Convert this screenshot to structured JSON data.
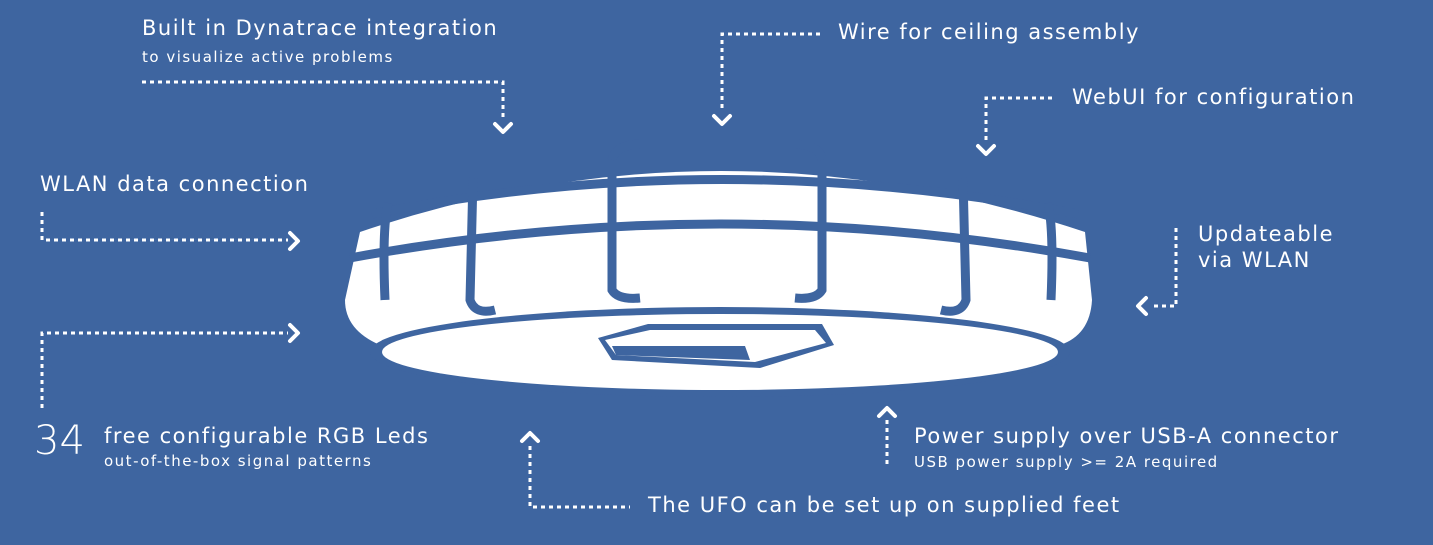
{
  "colors": {
    "background": "#3e65a0",
    "foreground": "#ffffff"
  },
  "labels": {
    "dynatrace_title": "Built in Dynatrace integration",
    "dynatrace_sub": "to visualize active problems",
    "wire": "Wire for ceiling assembly",
    "webui": "WebUI for configuration",
    "wlan": "WLAN data connection",
    "updateable_line1": "Updateable",
    "updateable_line2": "via WLAN",
    "leds_count": "34",
    "leds_title": "free configurable RGB Leds",
    "leds_sub": "out-of-the-box signal patterns",
    "power_title": "Power supply over USB-A connector",
    "power_sub": "USB power supply >= 2A required",
    "feet": "The UFO can be set up on supplied feet"
  },
  "icons": [
    "ufo-device-illustration",
    "arrow-down-icon",
    "arrow-right-icon",
    "arrow-left-icon",
    "arrow-up-icon"
  ]
}
